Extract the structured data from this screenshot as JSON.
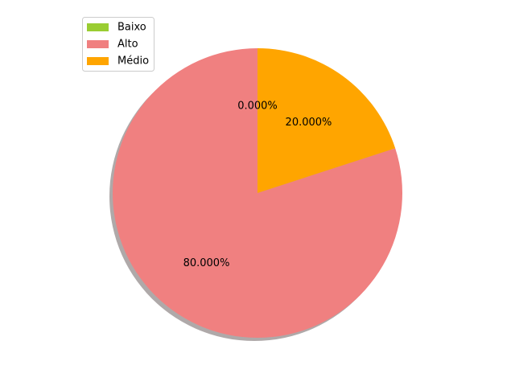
{
  "chart_data": {
    "type": "pie",
    "title": "",
    "shadow": true,
    "start_angle_deg": 90,
    "direction": "counterclockwise",
    "legend_position": "top-left",
    "slices": [
      {
        "label": "Baixo",
        "value": 0,
        "pct_label": "0.000%",
        "color": "#9acd32"
      },
      {
        "label": "Alto",
        "value": 80,
        "pct_label": "80.000%",
        "color": "#f08080"
      },
      {
        "label": "Médio",
        "value": 20,
        "pct_label": "20.000%",
        "color": "#ffa500"
      }
    ]
  }
}
